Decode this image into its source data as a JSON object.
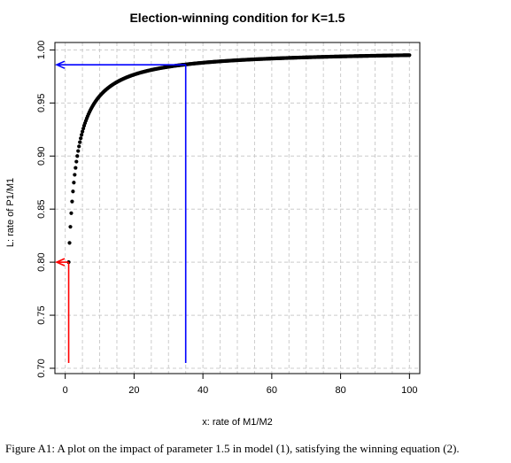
{
  "chart_data": {
    "type": "scatter",
    "title": "Election-winning condition for K=1.5",
    "xlabel": "x: rate of M1/M2",
    "ylabel": "L: rate of P1/M1",
    "xlim": [
      -3,
      103
    ],
    "ylim": [
      0.695,
      1.007
    ],
    "xticks": [
      0,
      20,
      40,
      60,
      80,
      100
    ],
    "yticks": [
      0.7,
      0.75,
      0.8,
      0.85,
      0.9,
      0.95,
      1.0
    ],
    "xtick_labels": [
      "0",
      "20",
      "40",
      "60",
      "80",
      "100"
    ],
    "ytick_labels": [
      "0.70",
      "0.75",
      "0.80",
      "0.85",
      "0.90",
      "0.95",
      "1.00"
    ],
    "grid": true,
    "series": [
      {
        "color": "#000000",
        "marker": "dot",
        "function": "L = (x + 1) / (x + 1.5)",
        "x_range": [
          1,
          100
        ],
        "x_step": 0.25
      }
    ],
    "annotations": [
      {
        "color": "#ff0000",
        "x": 1,
        "y": 0.8,
        "description": "red vertical line from the x-axis to the curve at x=1, with an arrow pointing left to the y-axis at L=0.80"
      },
      {
        "color": "#0000ff",
        "x": 35,
        "y": 0.986,
        "description": "blue vertical line from the x-axis to the curve at x=35, with an arrow pointing left to the y-axis at L=0.986"
      }
    ]
  },
  "caption": "Figure A1: A plot on the impact of parameter 1.5 in model (1), satisfying the winning equation (2)."
}
